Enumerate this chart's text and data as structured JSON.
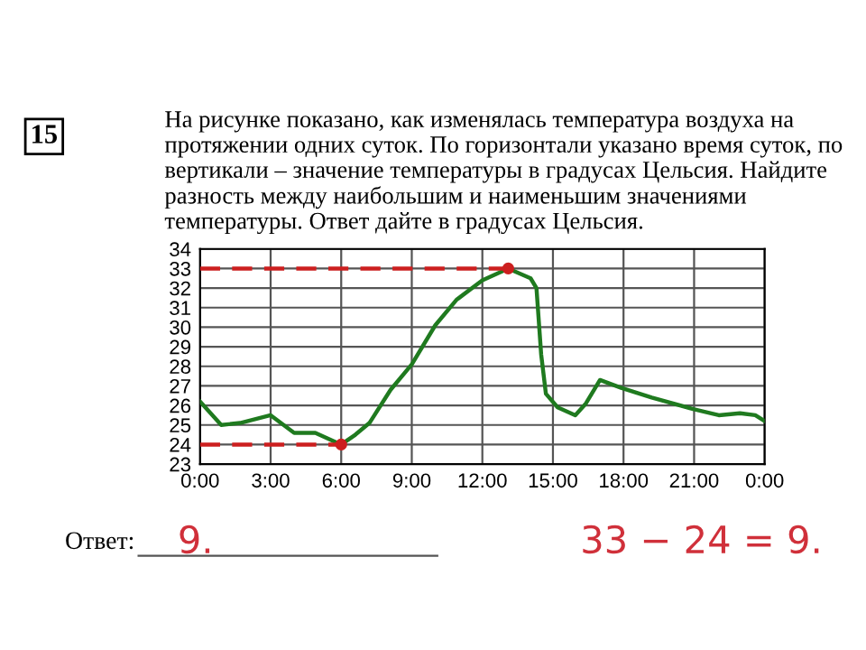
{
  "chart_data": {
    "type": "line",
    "title": "На рисунке показано, как изменялась температура воздуха на протяжении одних суток. По горизонтали указано время суток, по вертикали – значение температуры в градусах Цельсия. Найдите разность между наибольшим и наименьшим значениями температуры. Ответ дайте в градусах Цельсия.",
    "series": [
      {
        "color": "#1f7a1f",
        "x": [
          0,
          0.9,
          1.7,
          3,
          4,
          4.9,
          6,
          6.6,
          7.2,
          8.1,
          9,
          10,
          10.9,
          12,
          13.1,
          14.05,
          14.3,
          14.5,
          14.7,
          15.2,
          15.95,
          16.4,
          17,
          17.9,
          19.2,
          21,
          22.05,
          22.95,
          23.6,
          24
        ],
        "values": [
          26.2,
          25,
          25.1,
          25.5,
          24.6,
          24.6,
          24,
          24.5,
          25.1,
          26.8,
          28.1,
          30.1,
          31.4,
          32.4,
          33,
          32.5,
          32,
          28.6,
          26.6,
          25.9,
          25.5,
          26.1,
          27.3,
          26.9,
          26.4,
          25.8,
          25.5,
          25.6,
          25.5,
          25.2
        ]
      },
      {
        "color": "#cc1f1f",
        "line_style": "dashed",
        "x": [
          0,
          13.1
        ],
        "values": [
          33,
          33
        ]
      },
      {
        "color": "#cc1f1f",
        "line_style": "dashed",
        "x": [
          0,
          6
        ],
        "values": [
          24,
          24
        ]
      },
      {
        "color": "#cc1f1f",
        "type": "scatter",
        "marker": "circle",
        "x": [
          6,
          13.1
        ],
        "values": [
          24,
          33
        ]
      }
    ],
    "xlim": [
      0,
      24
    ],
    "xticks": [
      {
        "value": 0,
        "label": "0:00"
      },
      {
        "value": 3,
        "label": "3:00"
      },
      {
        "value": 6,
        "label": "6:00"
      },
      {
        "value": 9,
        "label": "9:00"
      },
      {
        "value": 12,
        "label": "12:00"
      },
      {
        "value": 15,
        "label": "15:00"
      },
      {
        "value": 18,
        "label": "18:00"
      },
      {
        "value": 21,
        "label": "21:00"
      },
      {
        "value": 24,
        "label": "0:00"
      }
    ],
    "ylim": [
      23,
      34
    ],
    "yticks": [
      23,
      24,
      25,
      26,
      27,
      28,
      29,
      30,
      31,
      32,
      33,
      34
    ],
    "grid": true,
    "annotations": [
      "15",
      "Ответ:",
      "9.",
      "33 − 24 = 9."
    ]
  }
}
